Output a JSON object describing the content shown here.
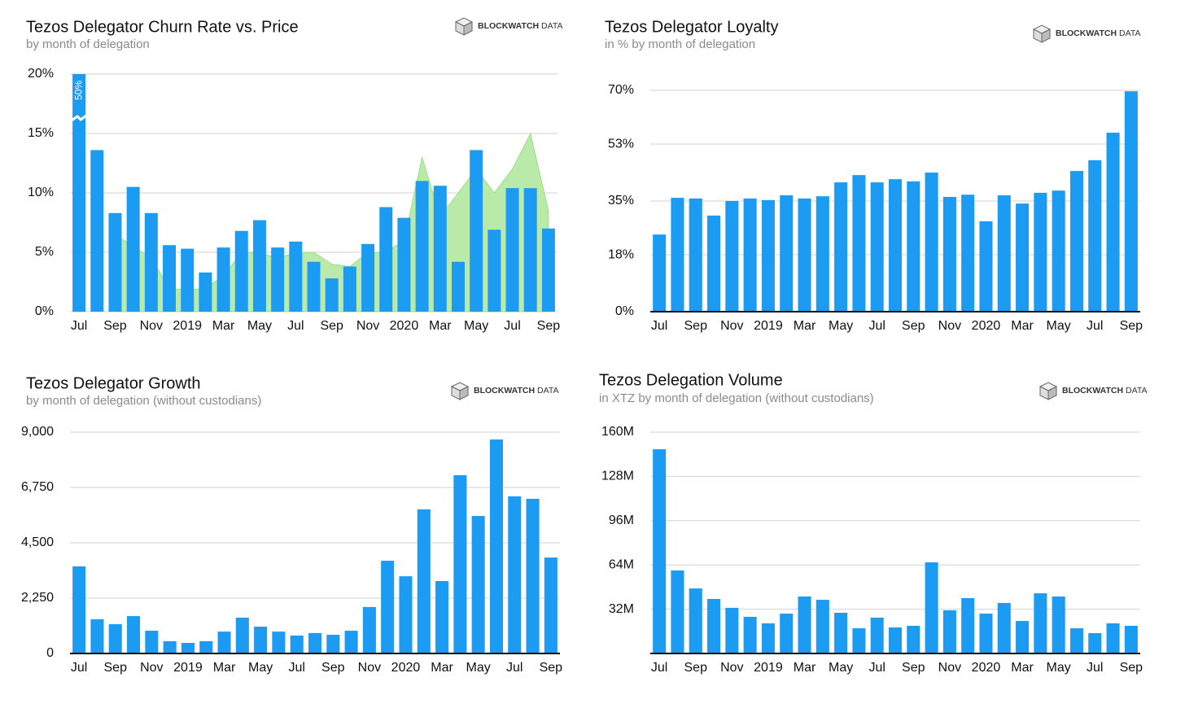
{
  "chart_data": [
    {
      "type": "bar",
      "title": "Tezos Delegator Churn Rate vs. Price",
      "subtitle": "by month of delegation",
      "logo": [
        "BLOCKWATCH",
        "DATA"
      ],
      "categories": [
        "Jul",
        null,
        "Sep",
        null,
        "Nov",
        null,
        "2019",
        null,
        "Mar",
        null,
        "May",
        null,
        "Jul",
        null,
        "Sep",
        null,
        "Nov",
        null,
        "2020",
        null,
        "Mar",
        null,
        "May",
        null,
        "Jul",
        null,
        "Sep"
      ],
      "values": [
        50,
        13.6,
        8.3,
        10.5,
        8.3,
        5.6,
        5.3,
        3.3,
        5.4,
        6.8,
        7.7,
        5.4,
        5.9,
        4.2,
        2.8,
        3.8,
        5.7,
        8.8,
        7.9,
        11.0,
        10.6,
        4.2,
        13.6,
        6.9,
        10.4,
        10.4,
        7.0
      ],
      "value_labels": [
        "50%",
        null,
        null,
        null,
        null,
        null,
        null,
        null,
        null,
        null,
        null,
        null,
        null,
        null,
        null,
        null,
        null,
        null,
        null,
        null,
        null,
        null,
        null,
        null,
        null,
        null,
        null
      ],
      "area_values": [
        null,
        null,
        6.5,
        5.5,
        4.5,
        2,
        1.8,
        2,
        3,
        5,
        5,
        4.5,
        5,
        5,
        4,
        3.8,
        5,
        5,
        6,
        13,
        8,
        10,
        12,
        10,
        12,
        15,
        8.5
      ],
      "area_color": "#b9eaa9",
      "color": "#1b9bf2",
      "ylim": [
        0,
        20
      ],
      "yticks": [
        {
          "value": 0,
          "label": "0%"
        },
        {
          "value": 5,
          "label": "5%"
        },
        {
          "value": 10,
          "label": "10%"
        },
        {
          "value": 15,
          "label": "15%"
        },
        {
          "value": 20,
          "label": "20%"
        }
      ],
      "grid": true
    },
    {
      "type": "bar",
      "title": "Tezos Delegator Loyalty",
      "subtitle": "in % by month of delegation",
      "logo": [
        "BLOCKWATCH",
        "DATA"
      ],
      "categories": [
        "Jul",
        null,
        "Sep",
        null,
        "Nov",
        null,
        "2019",
        null,
        "Mar",
        null,
        "May",
        null,
        "Jul",
        null,
        "Sep",
        null,
        "Nov",
        null,
        "2020",
        null,
        "Mar",
        null,
        "May",
        null,
        "Jul",
        null,
        "Sep"
      ],
      "values": [
        24.4,
        36,
        35.8,
        30.4,
        35,
        35.8,
        35.3,
        36.8,
        35.8,
        36.5,
        40.9,
        43.2,
        40.9,
        41.9,
        41.2,
        44,
        36.3,
        37,
        28.6,
        36.8,
        34.2,
        37.6,
        38.3,
        44.5,
        47.9,
        56.6,
        69.7
      ],
      "color": "#1b9bf2",
      "ylim": [
        0,
        70
      ],
      "yticks": [
        {
          "value": 0,
          "label": "0%"
        },
        {
          "value": 18,
          "label": "18%"
        },
        {
          "value": 35,
          "label": "35%"
        },
        {
          "value": 53,
          "label": "53%"
        },
        {
          "value": 70,
          "label": "70%"
        }
      ],
      "grid": true
    },
    {
      "type": "bar",
      "title": "Tezos Delegator Growth",
      "subtitle": "by month of delegation (without custodians)",
      "logo": [
        "BLOCKWATCH",
        "DATA"
      ],
      "categories": [
        "Jul",
        null,
        "Sep",
        null,
        "Nov",
        null,
        "2019",
        null,
        "Mar",
        null,
        "May",
        null,
        "Jul",
        null,
        "Sep",
        null,
        "Nov",
        null,
        "2020",
        null,
        "Mar",
        null,
        "May",
        null,
        "Jul",
        null,
        "Sep"
      ],
      "values": [
        3540,
        1390,
        1190,
        1520,
        925,
        500,
        430,
        500,
        890,
        1455,
        1090,
        890,
        730,
        830,
        760,
        925,
        1890,
        3770,
        3140,
        5860,
        2945,
        7250,
        5590,
        8700,
        6390,
        6290,
        3900
      ],
      "color": "#1b9bf2",
      "ylim": [
        0,
        9000
      ],
      "yticks": [
        0,
        {
          "value": 2250,
          "label": "2,250"
        },
        {
          "value": 4500,
          "label": "4,500"
        },
        {
          "value": 6750,
          "label": "6,750"
        },
        {
          "value": 9000,
          "label": "9,000"
        }
      ],
      "grid": true
    },
    {
      "type": "bar",
      "title": "Tezos Delegation Volume",
      "subtitle": "in XTZ by month of delegation (without custodians)",
      "logo": [
        "BLOCKWATCH",
        "DATA"
      ],
      "categories": [
        "Jul",
        null,
        "Sep",
        null,
        "Nov",
        null,
        "2019",
        null,
        "Mar",
        null,
        "May",
        null,
        "Jul",
        null,
        "Sep",
        null,
        "Nov",
        null,
        "2020",
        null,
        "Mar",
        null,
        "May",
        null,
        "Jul",
        null,
        "Sep"
      ],
      "values": [
        147.6,
        60,
        47,
        39.4,
        33,
        26.5,
        21.8,
        28.8,
        41.2,
        38.8,
        29.4,
        18.2,
        25.9,
        18.8,
        20,
        65.9,
        31.2,
        40,
        28.8,
        36.5,
        23.5,
        43.5,
        41.2,
        18.2,
        14.7,
        21.8,
        20
      ],
      "color": "#1b9bf2",
      "ylim": [
        0,
        160
      ],
      "yticks": [
        {
          "value": 32,
          "label": "32M"
        },
        {
          "value": 64,
          "label": "64M"
        },
        {
          "value": 96,
          "label": "96M"
        },
        {
          "value": 128,
          "label": "128M"
        },
        {
          "value": 160,
          "label": "160M"
        }
      ],
      "grid": true
    }
  ]
}
